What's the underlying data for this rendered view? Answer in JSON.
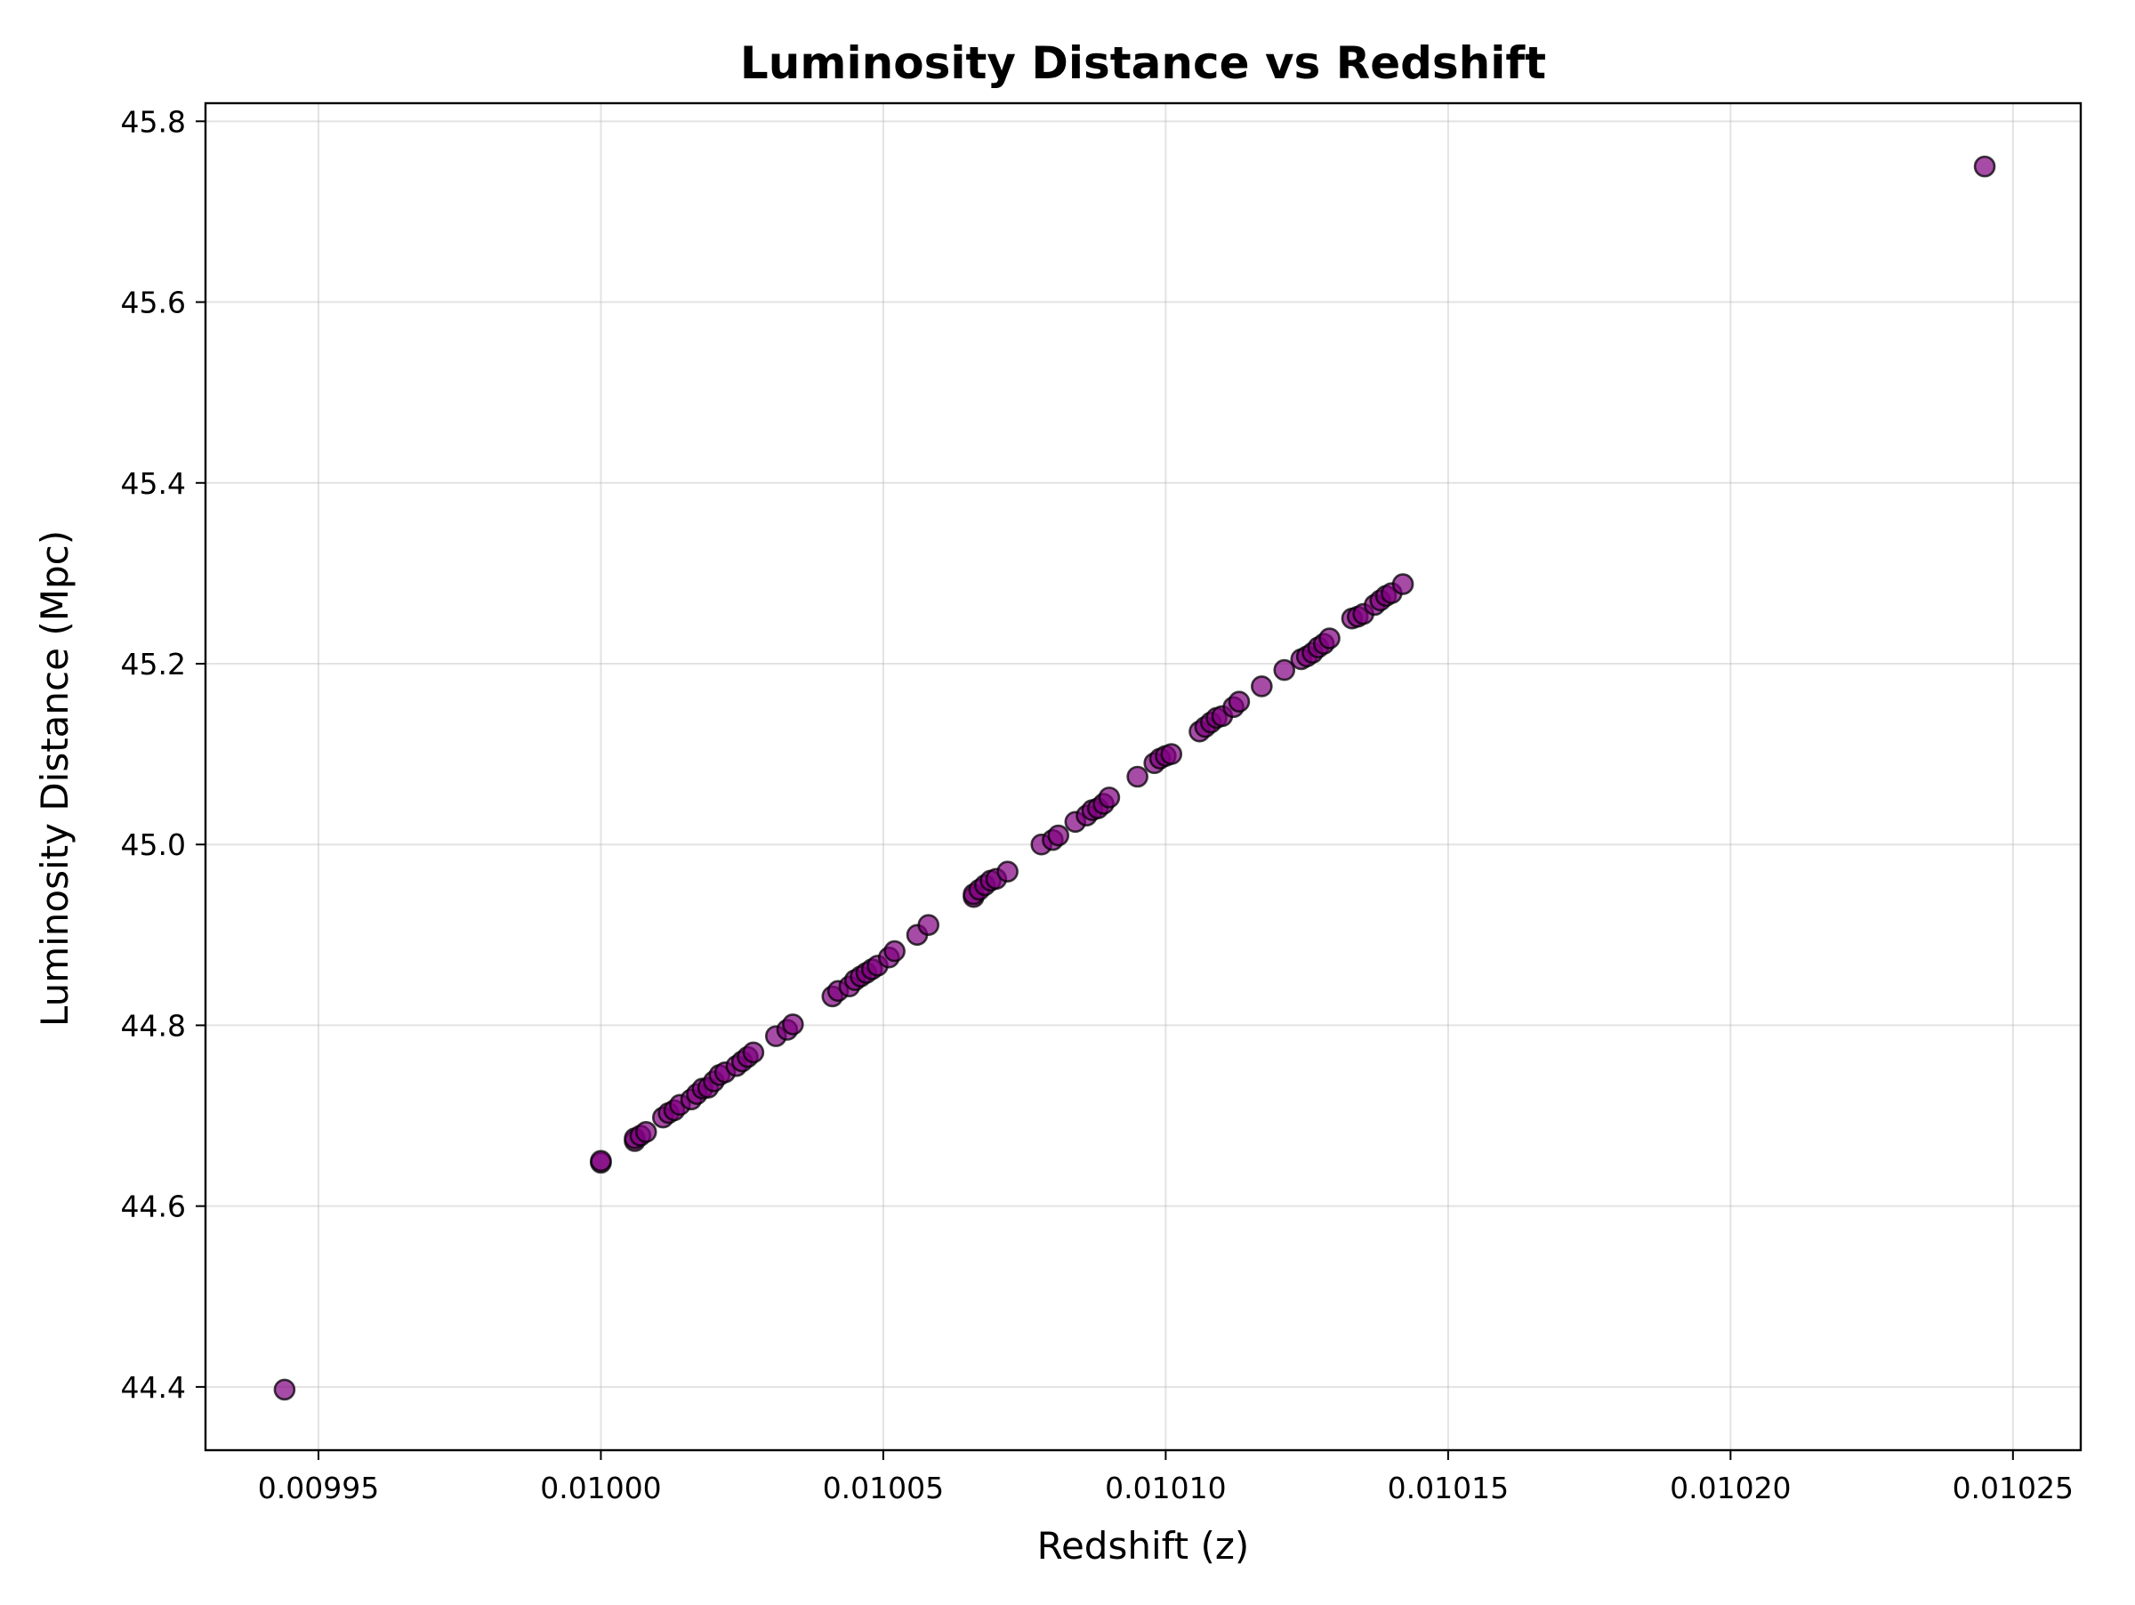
{
  "chart_data": {
    "type": "scatter",
    "title": "Luminosity Distance vs Redshift",
    "xlabel": "Redshift (z)",
    "ylabel": "Luminosity Distance (Mpc)",
    "xlim": [
      0.00993,
      0.010262
    ],
    "ylim": [
      44.33,
      45.82
    ],
    "x_ticks": [
      0.00995,
      0.01,
      0.01005,
      0.0101,
      0.01015,
      0.0102,
      0.01025
    ],
    "x_tick_labels": [
      "0.00995",
      "0.01000",
      "0.01005",
      "0.01010",
      "0.01015",
      "0.01020",
      "0.01025"
    ],
    "y_ticks": [
      44.4,
      44.6,
      44.8,
      45.0,
      45.2,
      45.4,
      45.6,
      45.8
    ],
    "y_tick_labels": [
      "44.4",
      "44.6",
      "44.8",
      "45.0",
      "45.2",
      "45.4",
      "45.6",
      "45.8"
    ],
    "grid": true,
    "marker_color": "#800080",
    "marker_edge_color": "#000000",
    "marker_alpha": 0.7,
    "series": [
      {
        "x": [
          0.009944,
          0.01,
          0.01,
          0.010006,
          0.010006,
          0.010007,
          0.010008,
          0.010011,
          0.010012,
          0.010013,
          0.010014,
          0.010016,
          0.010017,
          0.010018,
          0.010019,
          0.01002,
          0.010021,
          0.010022,
          0.010024,
          0.010025,
          0.010026,
          0.010027,
          0.010031,
          0.010033,
          0.010034,
          0.010041,
          0.010042,
          0.010044,
          0.010045,
          0.010046,
          0.010047,
          0.010048,
          0.010049,
          0.010051,
          0.010052,
          0.010056,
          0.010058,
          0.010066,
          0.010066,
          0.010067,
          0.010068,
          0.010069,
          0.01007,
          0.010072,
          0.010078,
          0.01008,
          0.010081,
          0.010084,
          0.010086,
          0.010087,
          0.010088,
          0.010089,
          0.01009,
          0.010095,
          0.010098,
          0.010099,
          0.0101,
          0.010101,
          0.010106,
          0.010107,
          0.010108,
          0.010109,
          0.01011,
          0.010112,
          0.010113,
          0.010117,
          0.010121,
          0.010124,
          0.010125,
          0.010126,
          0.010127,
          0.010128,
          0.010129,
          0.010133,
          0.010134,
          0.010135,
          0.010137,
          0.010138,
          0.010139,
          0.01014,
          0.010142,
          0.010245
        ],
        "y": [
          44.397,
          44.648,
          44.65,
          44.672,
          44.675,
          44.678,
          44.682,
          44.698,
          44.703,
          44.706,
          44.712,
          44.718,
          44.724,
          44.73,
          44.731,
          44.738,
          44.745,
          44.748,
          44.755,
          44.76,
          44.765,
          44.77,
          44.788,
          44.795,
          44.801,
          44.832,
          44.838,
          44.843,
          44.85,
          44.854,
          44.858,
          44.862,
          44.866,
          44.875,
          44.882,
          44.9,
          44.911,
          44.942,
          44.945,
          44.95,
          44.955,
          44.96,
          44.962,
          44.97,
          45.0,
          45.005,
          45.01,
          45.025,
          45.032,
          45.038,
          45.04,
          45.045,
          45.052,
          45.075,
          45.09,
          45.095,
          45.098,
          45.1,
          45.125,
          45.13,
          45.135,
          45.14,
          45.142,
          45.152,
          45.158,
          45.175,
          45.193,
          45.205,
          45.208,
          45.212,
          45.218,
          45.222,
          45.228,
          45.25,
          45.252,
          45.255,
          45.265,
          45.27,
          45.275,
          45.278,
          45.288,
          45.75
        ]
      }
    ]
  }
}
